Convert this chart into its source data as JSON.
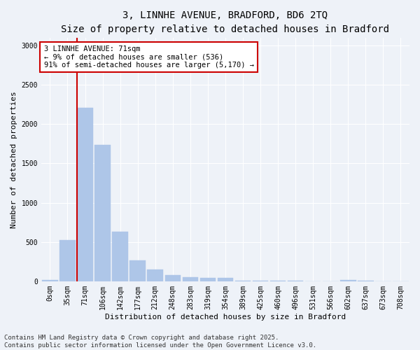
{
  "title_line1": "3, LINNHE AVENUE, BRADFORD, BD6 2TQ",
  "title_line2": "Size of property relative to detached houses in Bradford",
  "xlabel": "Distribution of detached houses by size in Bradford",
  "ylabel": "Number of detached properties",
  "categories": [
    "0sqm",
    "35sqm",
    "71sqm",
    "106sqm",
    "142sqm",
    "177sqm",
    "212sqm",
    "248sqm",
    "283sqm",
    "319sqm",
    "354sqm",
    "389sqm",
    "425sqm",
    "460sqm",
    "496sqm",
    "531sqm",
    "566sqm",
    "602sqm",
    "637sqm",
    "673sqm",
    "708sqm"
  ],
  "values": [
    20,
    520,
    2210,
    1740,
    630,
    270,
    150,
    80,
    50,
    45,
    40,
    5,
    5,
    5,
    5,
    0,
    0,
    20,
    5,
    0,
    0
  ],
  "bar_color": "#aec6e8",
  "bar_edge_color": "#aec6e8",
  "highlight_bar_index": 2,
  "highlight_line_color": "#cc0000",
  "annotation_text": "3 LINNHE AVENUE: 71sqm\n← 9% of detached houses are smaller (536)\n91% of semi-detached houses are larger (5,170) →",
  "annotation_box_color": "#ffffff",
  "annotation_box_edge_color": "#cc0000",
  "ylim": [
    0,
    3100
  ],
  "yticks": [
    0,
    500,
    1000,
    1500,
    2000,
    2500,
    3000
  ],
  "footer_text": "Contains HM Land Registry data © Crown copyright and database right 2025.\nContains public sector information licensed under the Open Government Licence v3.0.",
  "background_color": "#eef2f8",
  "grid_color": "#ffffff",
  "title_fontsize": 10,
  "subtitle_fontsize": 9,
  "axis_label_fontsize": 8,
  "tick_fontsize": 7,
  "annotation_fontsize": 7.5,
  "footer_fontsize": 6.5
}
